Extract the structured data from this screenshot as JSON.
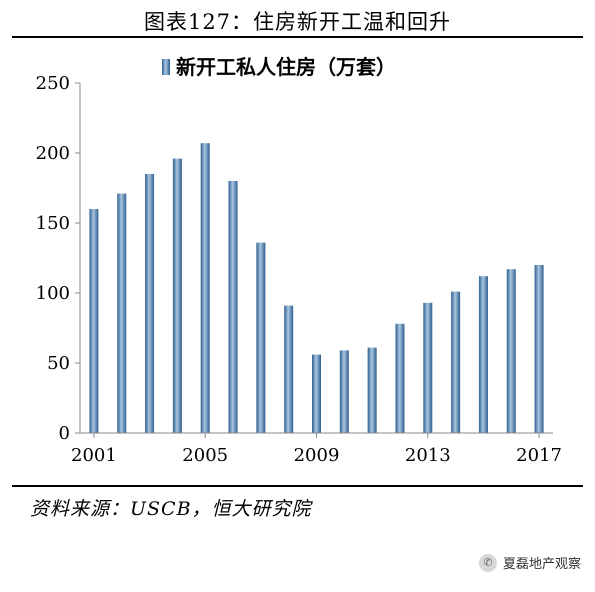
{
  "figure_title": "图表127：住房新开工温和回升",
  "source": "资料来源：USCB，恒大研究院",
  "watermark": {
    "text": "夏磊地产观察",
    "icon": "wechat-icon"
  },
  "colors": {
    "bar": "#5b8fc0",
    "bar_dark": "#2e5e8e",
    "bar_light": "#a9c6e2"
  },
  "chart_data": {
    "type": "bar",
    "title": "",
    "xlabel": "",
    "ylabel": "",
    "ylim": [
      0,
      250
    ],
    "yticks": [
      "0",
      "50",
      "100",
      "150",
      "200",
      "250"
    ],
    "xtick_labels": [
      "2001",
      "2005",
      "2009",
      "2013",
      "2017"
    ],
    "grid": false,
    "legend": {
      "position": "top",
      "entries": [
        "新开工私人住房（万套）"
      ]
    },
    "categories": [
      "2001",
      "2002",
      "2003",
      "2004",
      "2005",
      "2006",
      "2007",
      "2008",
      "2009",
      "2010",
      "2011",
      "2012",
      "2013",
      "2014",
      "2015",
      "2016",
      "2017"
    ],
    "series": [
      {
        "name": "新开工私人住房（万套）",
        "values": [
          160,
          171,
          185,
          196,
          207,
          180,
          136,
          91,
          56,
          59,
          61,
          78,
          93,
          101,
          112,
          117,
          120
        ]
      }
    ]
  }
}
